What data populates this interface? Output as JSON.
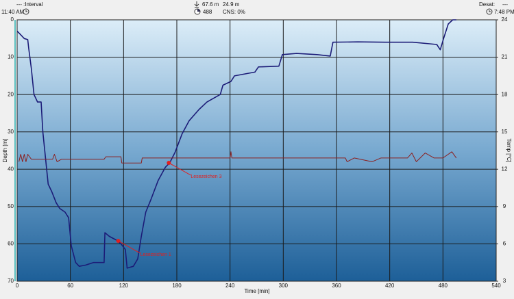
{
  "header": {
    "interval_dash": "---",
    "interval": ":Interval",
    "start_time": "11:40 AM",
    "max_depth": "67.6 m",
    "avg_depth": "24.9 m",
    "duration": "488",
    "cns": "CNS:  0%",
    "desat_label": "Desat:",
    "desat_value": "---",
    "end_time": "7:48 PM"
  },
  "chart_data": {
    "type": "line",
    "xlabel": "Time [min]",
    "ylabel": "Depth [m]",
    "y2label": "Temp [°C]",
    "xlim": [
      0,
      540
    ],
    "xticks": [
      0,
      60,
      120,
      180,
      240,
      300,
      360,
      420,
      480,
      540
    ],
    "ylim": [
      70,
      0
    ],
    "yticks": [
      0,
      10,
      20,
      30,
      40,
      50,
      60,
      70
    ],
    "y2lim": [
      3,
      24
    ],
    "y2ticks": [
      3,
      6,
      9,
      12,
      15,
      18,
      21,
      24
    ],
    "grid": true,
    "series": [
      {
        "color": "#1c1c78",
        "x": [
          0,
          4,
          8,
          12,
          13,
          16,
          19,
          23,
          27,
          29,
          32,
          35,
          39,
          44,
          48,
          54,
          58,
          61,
          66,
          70,
          77,
          86,
          93,
          98,
          99,
          104,
          112,
          117,
          122,
          124,
          131,
          136,
          140,
          145,
          151,
          159,
          167,
          172,
          178,
          186,
          194,
          205,
          214,
          229,
          232,
          241,
          245,
          268,
          272,
          295,
          299,
          315,
          338,
          353,
          356,
          384,
          415,
          446,
          473,
          477,
          481,
          486,
          491,
          495
        ],
        "values": [
          3,
          4,
          5,
          5.3,
          7.5,
          13,
          20,
          22,
          22,
          30,
          37,
          44,
          46,
          49,
          50.5,
          51.5,
          53,
          60.5,
          65,
          66,
          65.7,
          65,
          65,
          65,
          57,
          58,
          59,
          60,
          61.5,
          66.5,
          66,
          64,
          58,
          51.5,
          48,
          43,
          39.5,
          38.3,
          35.5,
          30.5,
          27,
          24,
          22,
          20,
          17.5,
          16.5,
          15,
          14,
          12.6,
          12.4,
          9.3,
          9,
          9.3,
          9.7,
          6,
          5.9,
          6,
          6,
          6.6,
          8,
          4.8,
          1.1,
          0,
          0
        ]
      },
      {
        "color": "#8c2020",
        "axis": "y2",
        "x": [
          2,
          4,
          6,
          8,
          10,
          12,
          16,
          40,
          42,
          45,
          50,
          60,
          80,
          98,
          100,
          117,
          118,
          140,
          141,
          170,
          200,
          240,
          241,
          242,
          300,
          370,
          372,
          380,
          400,
          410,
          440,
          445,
          450,
          460,
          470,
          480,
          490,
          495
        ],
        "values": [
          12.6,
          13.2,
          12.6,
          13.2,
          12.6,
          13.2,
          12.8,
          12.8,
          13.2,
          12.6,
          12.8,
          12.8,
          12.8,
          12.8,
          13,
          13,
          12.5,
          12.5,
          12.9,
          12.9,
          12.9,
          12.9,
          13.4,
          12.9,
          12.9,
          12.9,
          12.6,
          12.9,
          12.6,
          12.9,
          12.9,
          13.3,
          12.6,
          13.3,
          12.9,
          12.9,
          13.4,
          12.9
        ]
      }
    ],
    "annotations": [
      {
        "text": "Lesezeichen 3",
        "x": 171,
        "y": 38.3
      },
      {
        "text": "Lesezeichen 1",
        "x": 114,
        "y": 59.2
      }
    ]
  }
}
